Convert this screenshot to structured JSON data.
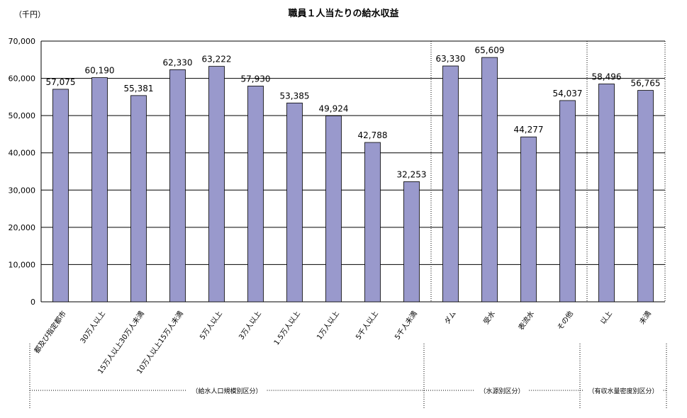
{
  "chart_data": {
    "type": "bar",
    "title": "職員１人当たりの給水収益",
    "unit_label": "（千円）",
    "ylim": [
      0,
      70000
    ],
    "yticks": [
      0,
      10000,
      20000,
      30000,
      40000,
      50000,
      60000,
      70000
    ],
    "ytick_labels": [
      "0",
      "10,000",
      "20,000",
      "30,000",
      "40,000",
      "50,000",
      "60,000",
      "70,000"
    ],
    "grid": true,
    "bar_color": "#9999cc",
    "categories": [
      "都及び指定都市",
      "30万人以上",
      "15万人以上30万人未満",
      "10万人以上15万人未満",
      "5万人以上",
      "3万人以上",
      "1.5万人以上",
      "1万人以上",
      "5千人以上",
      "5千人未満",
      "ダム",
      "受水",
      "表流水",
      "その他",
      "以上",
      "未満"
    ],
    "values": [
      57075,
      60190,
      55381,
      62330,
      63222,
      57930,
      53385,
      49924,
      42788,
      32253,
      63330,
      65609,
      44277,
      54037,
      58496,
      56765
    ],
    "value_labels": [
      "57,075",
      "60,190",
      "55,381",
      "62,330",
      "63,222",
      "57,930",
      "53,385",
      "49,924",
      "42,788",
      "32,253",
      "63,330",
      "65,609",
      "44,277",
      "54,037",
      "58,496",
      "56,765"
    ],
    "groups": [
      {
        "label": "（給水人口規模別区分）",
        "start": 0,
        "end": 9
      },
      {
        "label": "（水源別区分）",
        "start": 10,
        "end": 13
      },
      {
        "label": "（有収水量密度別区分）",
        "start": 14,
        "end": 15
      }
    ]
  }
}
